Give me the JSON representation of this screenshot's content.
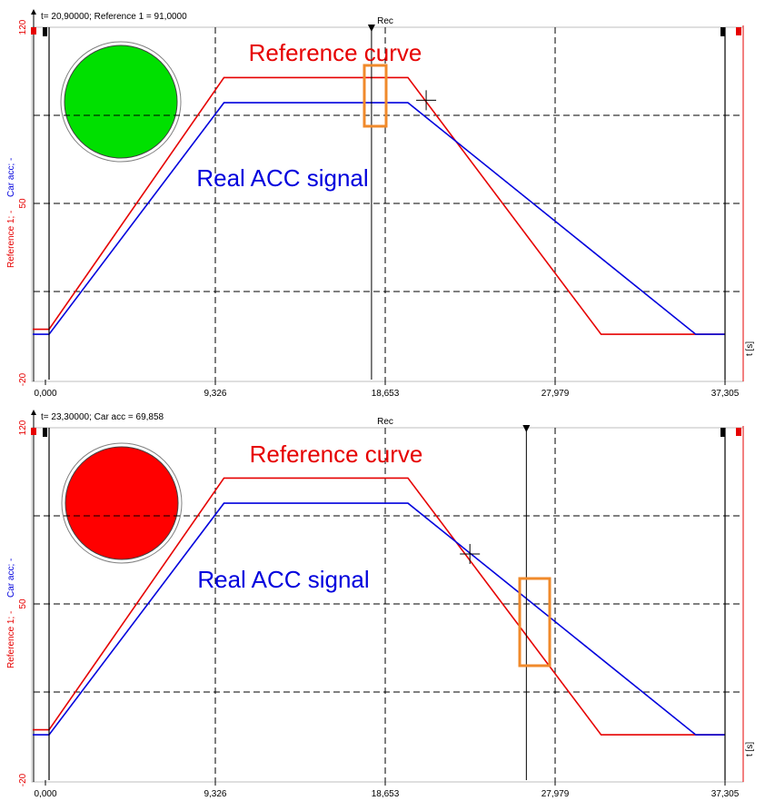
{
  "colors": {
    "reference": "#e60000",
    "car_acc": "#0000dd",
    "highlight": "#f08a2b",
    "light_green": "#00e000",
    "light_red": "#ff0000"
  },
  "charts": [
    {
      "readout": "t= 20,90000; Reference 1 = 91,0000",
      "readout_color": "#e60000",
      "marker_label": "Rec",
      "y_axis_label_ref": "Reference 1; -",
      "y_axis_label_car": "Car acc; -",
      "x_unit_label": "t [s]",
      "annotation_reference": "Reference curve",
      "annotation_real": "Real ACC signal",
      "light_state": "green",
      "light_color": "#00e000",
      "cursor_t": 17.9,
      "crosshair": {
        "t": 20.9,
        "v": 91
      }
    },
    {
      "readout": "t= 23,30000; Car acc = 69,858",
      "readout_color": "#0000dd",
      "marker_label": "Rec",
      "y_axis_label_ref": "Reference 1; -",
      "y_axis_label_car": "Car acc; -",
      "x_unit_label": "t [s]",
      "annotation_reference": "Reference curve",
      "annotation_real": "Real ACC signal",
      "light_state": "red",
      "light_color": "#ff0000",
      "cursor_t": 26.4,
      "crosshair": {
        "t": 23.3,
        "v": 69.858
      }
    }
  ],
  "chart_data": [
    {
      "type": "line",
      "xlabel": "t [s]",
      "ylabel": "Reference 1; - / Car acc; -",
      "xlim": [
        0,
        37.305
      ],
      "ylim": [
        -20,
        120
      ],
      "x_ticks": [
        "0,000",
        "9,326",
        "18,653",
        "27,979",
        "37,305"
      ],
      "y_ticks": [
        "-20",
        "50",
        "120"
      ],
      "grid": true,
      "series": [
        {
          "name": "Reference 1",
          "x": [
            -0.7,
            0.2,
            9.8,
            19.9,
            30.5,
            37.305
          ],
          "y": [
            0,
            0,
            100,
            100,
            -2,
            -2
          ]
        },
        {
          "name": "Car acc",
          "x": [
            -0.7,
            0.2,
            9.8,
            19.9,
            35.7,
            37.305
          ],
          "y": [
            -2,
            -2,
            90,
            90,
            -2,
            -2
          ]
        }
      ]
    },
    {
      "type": "line",
      "xlabel": "t [s]",
      "ylabel": "Reference 1; - / Car acc; -",
      "xlim": [
        0,
        37.305
      ],
      "ylim": [
        -20,
        120
      ],
      "x_ticks": [
        "0,000",
        "9,326",
        "18,653",
        "27,979",
        "37,305"
      ],
      "y_ticks": [
        "-20",
        "50",
        "120"
      ],
      "grid": true,
      "series": [
        {
          "name": "Reference 1",
          "x": [
            -0.7,
            0.2,
            9.8,
            19.9,
            30.5,
            37.305
          ],
          "y": [
            0,
            0,
            100,
            100,
            -2,
            -2
          ]
        },
        {
          "name": "Car acc",
          "x": [
            -0.7,
            0.2,
            9.8,
            19.9,
            35.7,
            37.305
          ],
          "y": [
            -2,
            -2,
            90,
            90,
            -2,
            -2
          ]
        }
      ]
    }
  ]
}
